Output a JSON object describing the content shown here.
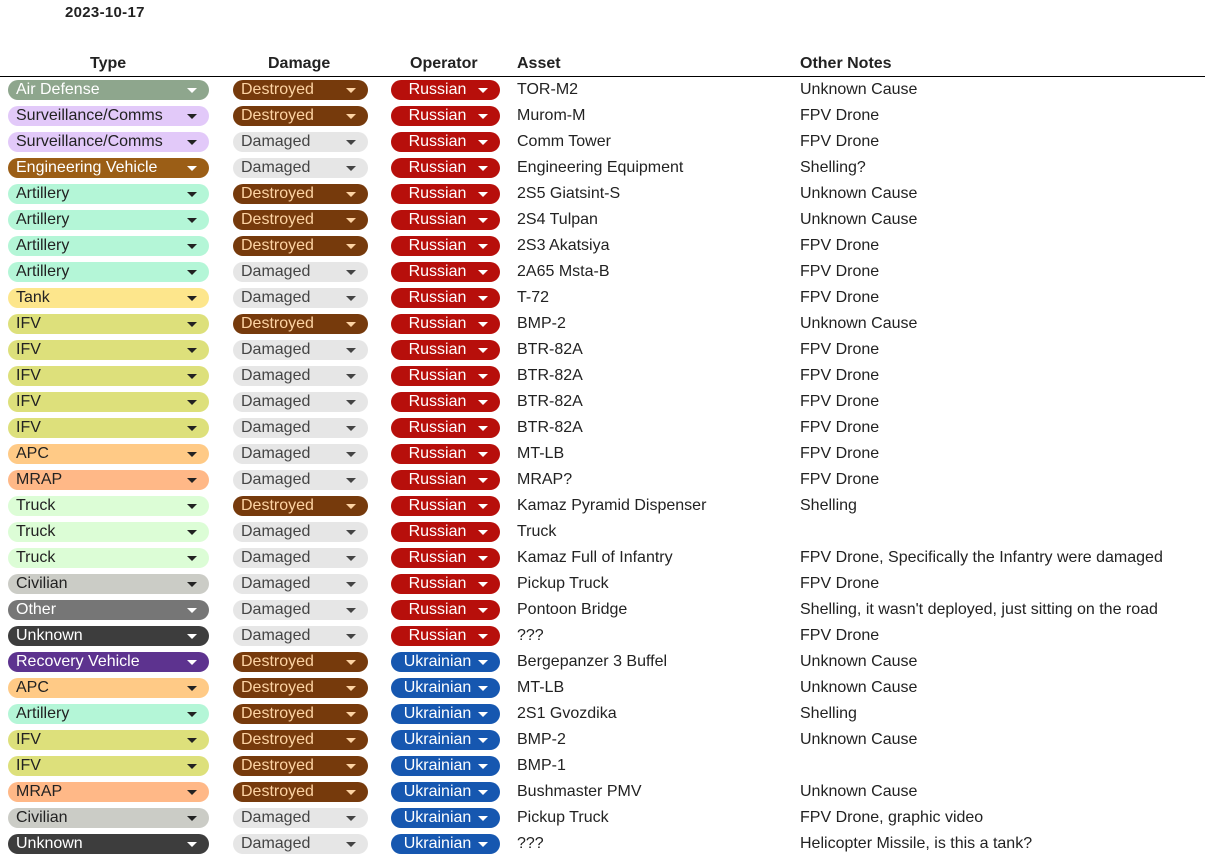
{
  "date": "2023-10-17",
  "headers": {
    "type": "Type",
    "damage": "Damage",
    "operator": "Operator",
    "asset": "Asset",
    "notes": "Other Notes"
  },
  "type_colors": {
    "Air Defense": [
      "#8ea68d",
      "#ffffff"
    ],
    "Surveillance/Comms": [
      "#e2c9f9",
      "#222222"
    ],
    "Engineering Vehicle": [
      "#9b5e16",
      "#ffffff"
    ],
    "Artillery": [
      "#b4f6d7",
      "#222222"
    ],
    "Tank": [
      "#fde68c",
      "#222222"
    ],
    "IFV": [
      "#dde07b",
      "#222222"
    ],
    "APC": [
      "#ffca86",
      "#222222"
    ],
    "MRAP": [
      "#ffb887",
      "#222222"
    ],
    "Truck": [
      "#dcfdd6",
      "#222222"
    ],
    "Civilian": [
      "#cbccc6",
      "#222222"
    ],
    "Other": [
      "#767676",
      "#ffffff"
    ],
    "Unknown": [
      "#3d3d3d",
      "#ffffff"
    ],
    "Recovery Vehicle": [
      "#5d338f",
      "#ffffff"
    ]
  },
  "damage_colors": {
    "Destroyed": [
      "#763a0c",
      "#fdd3a3"
    ],
    "Damaged": [
      "#e6e6e6",
      "#444444"
    ]
  },
  "operator_colors": {
    "Russian": [
      "#b70f0b",
      "#ffffff"
    ],
    "Ukrainian": [
      "#1657b0",
      "#ffffff"
    ]
  },
  "rows": [
    {
      "type": "Air Defense",
      "damage": "Destroyed",
      "operator": "Russian",
      "asset": "TOR-M2",
      "notes": "Unknown Cause"
    },
    {
      "type": "Surveillance/Comms",
      "damage": "Destroyed",
      "operator": "Russian",
      "asset": "Murom-M",
      "notes": "FPV Drone"
    },
    {
      "type": "Surveillance/Comms",
      "damage": "Damaged",
      "operator": "Russian",
      "asset": "Comm Tower",
      "notes": "FPV Drone"
    },
    {
      "type": "Engineering Vehicle",
      "damage": "Damaged",
      "operator": "Russian",
      "asset": "Engineering Equipment",
      "notes": "Shelling?"
    },
    {
      "type": "Artillery",
      "damage": "Destroyed",
      "operator": "Russian",
      "asset": "2S5 Giatsint-S",
      "notes": "Unknown Cause"
    },
    {
      "type": "Artillery",
      "damage": "Destroyed",
      "operator": "Russian",
      "asset": "2S4 Tulpan",
      "notes": "Unknown Cause"
    },
    {
      "type": "Artillery",
      "damage": "Destroyed",
      "operator": "Russian",
      "asset": "2S3 Akatsiya",
      "notes": "FPV Drone"
    },
    {
      "type": "Artillery",
      "damage": "Damaged",
      "operator": "Russian",
      "asset": "2A65 Msta-B",
      "notes": "FPV Drone"
    },
    {
      "type": "Tank",
      "damage": "Damaged",
      "operator": "Russian",
      "asset": "T-72",
      "notes": "FPV Drone"
    },
    {
      "type": "IFV",
      "damage": "Destroyed",
      "operator": "Russian",
      "asset": "BMP-2",
      "notes": "Unknown Cause"
    },
    {
      "type": "IFV",
      "damage": "Damaged",
      "operator": "Russian",
      "asset": "BTR-82A",
      "notes": "FPV Drone"
    },
    {
      "type": "IFV",
      "damage": "Damaged",
      "operator": "Russian",
      "asset": "BTR-82A",
      "notes": "FPV Drone"
    },
    {
      "type": "IFV",
      "damage": "Damaged",
      "operator": "Russian",
      "asset": "BTR-82A",
      "notes": "FPV Drone"
    },
    {
      "type": "IFV",
      "damage": "Damaged",
      "operator": "Russian",
      "asset": "BTR-82A",
      "notes": "FPV Drone"
    },
    {
      "type": "APC",
      "damage": "Damaged",
      "operator": "Russian",
      "asset": "MT-LB",
      "notes": "FPV Drone"
    },
    {
      "type": "MRAP",
      "damage": "Damaged",
      "operator": "Russian",
      "asset": "MRAP?",
      "notes": "FPV Drone"
    },
    {
      "type": "Truck",
      "damage": "Destroyed",
      "operator": "Russian",
      "asset": "Kamaz Pyramid Dispenser",
      "notes": "Shelling"
    },
    {
      "type": "Truck",
      "damage": "Damaged",
      "operator": "Russian",
      "asset": "Truck",
      "notes": ""
    },
    {
      "type": "Truck",
      "damage": "Damaged",
      "operator": "Russian",
      "asset": "Kamaz Full of Infantry",
      "notes": "FPV Drone, Specifically the Infantry were damaged"
    },
    {
      "type": "Civilian",
      "damage": "Damaged",
      "operator": "Russian",
      "asset": "Pickup Truck",
      "notes": "FPV Drone"
    },
    {
      "type": "Other",
      "damage": "Damaged",
      "operator": "Russian",
      "asset": "Pontoon Bridge",
      "notes": "Shelling, it wasn't deployed, just sitting on the road"
    },
    {
      "type": "Unknown",
      "damage": "Damaged",
      "operator": "Russian",
      "asset": "???",
      "notes": "FPV Drone"
    },
    {
      "type": "Recovery Vehicle",
      "damage": "Destroyed",
      "operator": "Ukrainian",
      "asset": "Bergepanzer 3 Buffel",
      "notes": "Unknown Cause"
    },
    {
      "type": "APC",
      "damage": "Destroyed",
      "operator": "Ukrainian",
      "asset": "MT-LB",
      "notes": "Unknown Cause"
    },
    {
      "type": "Artillery",
      "damage": "Destroyed",
      "operator": "Ukrainian",
      "asset": "2S1 Gvozdika",
      "notes": "Shelling"
    },
    {
      "type": "IFV",
      "damage": "Destroyed",
      "operator": "Ukrainian",
      "asset": "BMP-2",
      "notes": "Unknown Cause"
    },
    {
      "type": "IFV",
      "damage": "Destroyed",
      "operator": "Ukrainian",
      "asset": "BMP-1",
      "notes": ""
    },
    {
      "type": "MRAP",
      "damage": "Destroyed",
      "operator": "Ukrainian",
      "asset": "Bushmaster PMV",
      "notes": "Unknown Cause"
    },
    {
      "type": "Civilian",
      "damage": "Damaged",
      "operator": "Ukrainian",
      "asset": "Pickup Truck",
      "notes": "FPV Drone, graphic video"
    },
    {
      "type": "Unknown",
      "damage": "Damaged",
      "operator": "Ukrainian",
      "asset": "???",
      "notes": "Helicopter Missile, is this a tank?"
    }
  ]
}
